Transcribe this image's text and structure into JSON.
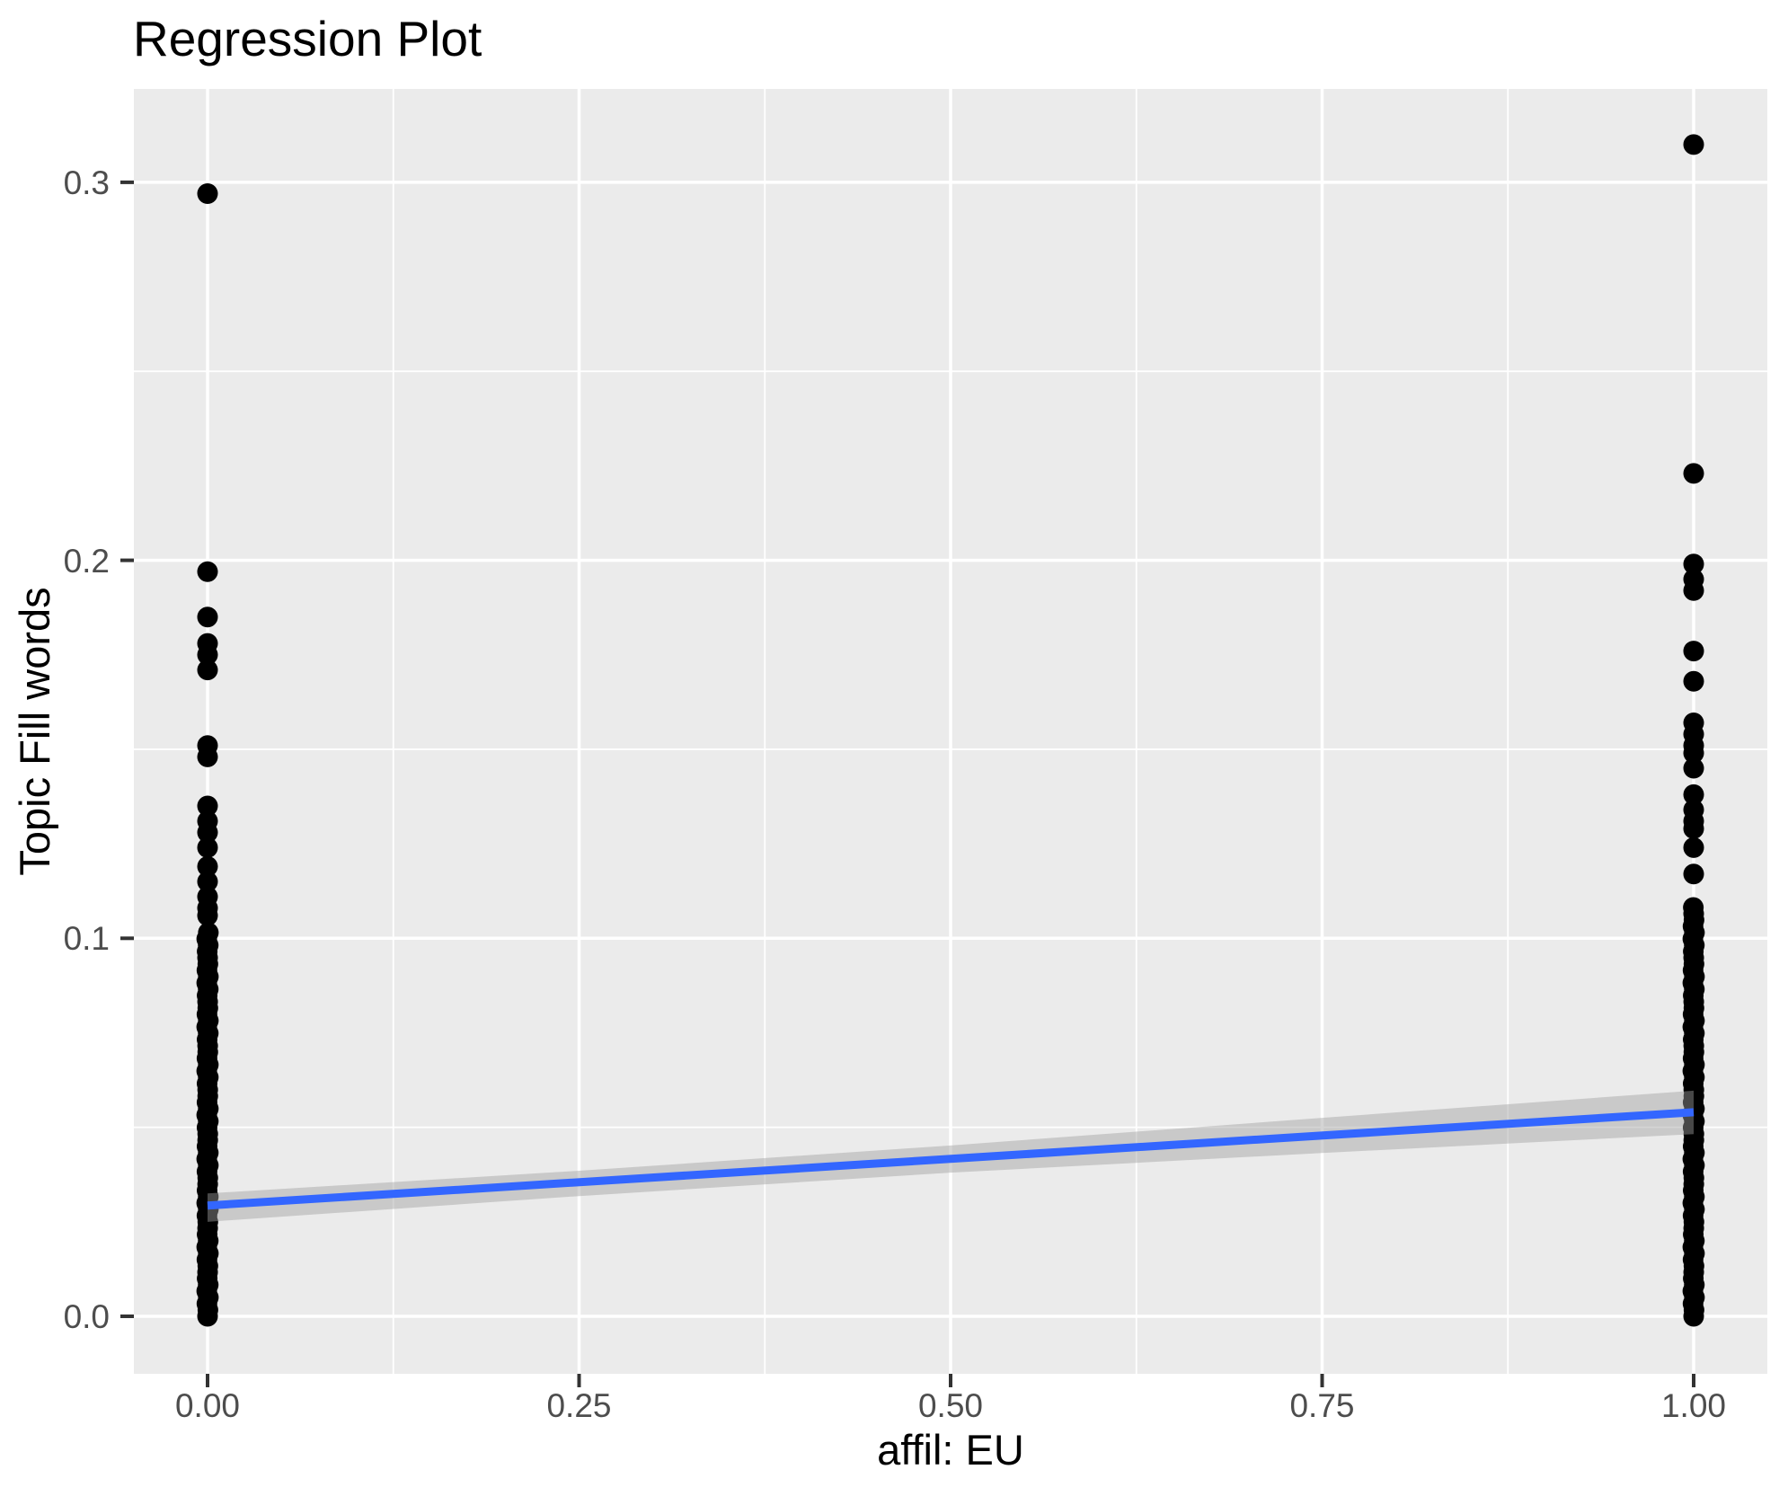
{
  "title": "Regression Plot",
  "chart_data": {
    "type": "scatter",
    "title": "Regression Plot",
    "xlabel": "affil: EU",
    "ylabel": "Topic Fill words",
    "x_ticks": [
      "0.00",
      "0.25",
      "0.50",
      "0.75",
      "1.00"
    ],
    "x_tick_values": [
      0,
      0.25,
      0.5,
      0.75,
      1
    ],
    "y_ticks": [
      "0.0",
      "0.1",
      "0.2",
      "0.3"
    ],
    "y_tick_values": [
      0,
      0.1,
      0.2,
      0.3
    ],
    "x_minor_values": [
      0.125,
      0.375,
      0.625,
      0.875
    ],
    "y_minor_values": [
      0.05,
      0.15,
      0.25
    ],
    "xlim": [
      -0.05,
      1.05
    ],
    "ylim": [
      -0.0155,
      0.3245
    ],
    "grid": true,
    "legend": false,
    "series": [
      {
        "name": "observations at x=0",
        "x": 0,
        "dense_range": [
          0.0,
          0.103
        ],
        "points": [
          0.297,
          0.197,
          0.185,
          0.178,
          0.175,
          0.171,
          0.151,
          0.148,
          0.135,
          0.131,
          0.128,
          0.124,
          0.119,
          0.115,
          0.111,
          0.108,
          0.106
        ]
      },
      {
        "name": "observations at x=1",
        "x": 1,
        "dense_range": [
          0.0,
          0.109
        ],
        "points": [
          0.31,
          0.223,
          0.199,
          0.195,
          0.192,
          0.176,
          0.168,
          0.157,
          0.154,
          0.151,
          0.149,
          0.145,
          0.138,
          0.134,
          0.131,
          0.129,
          0.124,
          0.117
        ]
      }
    ],
    "regression_line": {
      "x": [
        0,
        1
      ],
      "y": [
        0.0293,
        0.054
      ],
      "color": "#3366FF"
    },
    "confidence_band": {
      "x": [
        0,
        0.25,
        0.5,
        0.75,
        1
      ],
      "upper": [
        0.0325,
        0.0385,
        0.0452,
        0.0525,
        0.0597
      ],
      "lower": [
        0.025,
        0.0318,
        0.038,
        0.0432,
        0.0482
      ],
      "color": "rgba(160,160,160,0.45)"
    },
    "colors": {
      "panel": "#EBEBEB",
      "grid": "#FFFFFF",
      "point": "#000000",
      "tick_label": "#4D4D4D",
      "tick_mark": "#333333",
      "text": "#000000"
    }
  }
}
